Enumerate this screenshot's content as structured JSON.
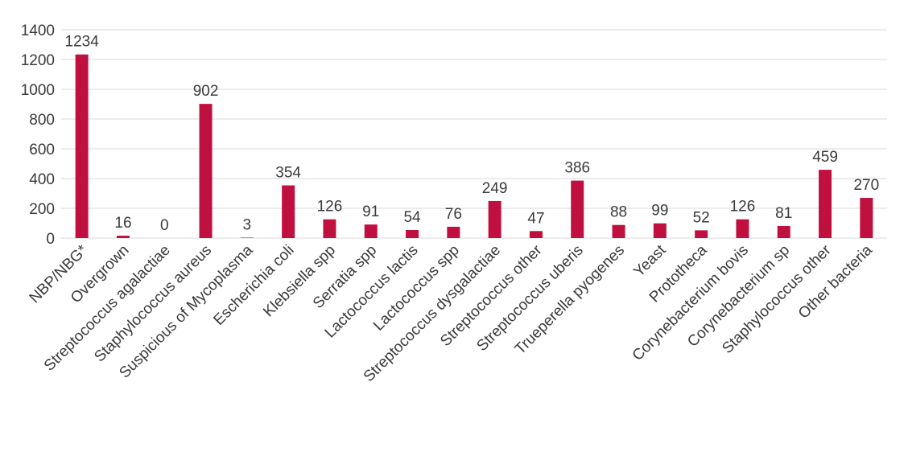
{
  "chart_data": {
    "type": "bar",
    "title": "",
    "xlabel": "",
    "ylabel": "",
    "ylim": [
      0,
      1400
    ],
    "yticks": [
      0,
      200,
      400,
      600,
      800,
      1000,
      1200,
      1400
    ],
    "grid": true,
    "legend": "none",
    "bar_color": "#c0103f",
    "categories": [
      "NBP/NBG*",
      "Overgrown",
      "Streptococcus agalactiae",
      "Staphylococcus aureus",
      "Suspicious of Mycoplasma",
      "Escherichia coli",
      "Klebsiella spp",
      "Serratia spp",
      "Lactococcus lactis",
      "Lactococcus spp",
      "Streptococcus dysgalactiae",
      "Streptococcus other",
      "Streptococcus uberis",
      "Trueperella pyogenes",
      "Yeast",
      "Prototheca",
      "Corynebacterium bovis",
      "Corynebacterium sp",
      "Staphylococcus other",
      "Other bacteria"
    ],
    "values": [
      1234,
      16,
      0,
      902,
      3,
      354,
      126,
      91,
      54,
      76,
      249,
      47,
      386,
      88,
      99,
      52,
      126,
      81,
      459,
      270
    ]
  }
}
